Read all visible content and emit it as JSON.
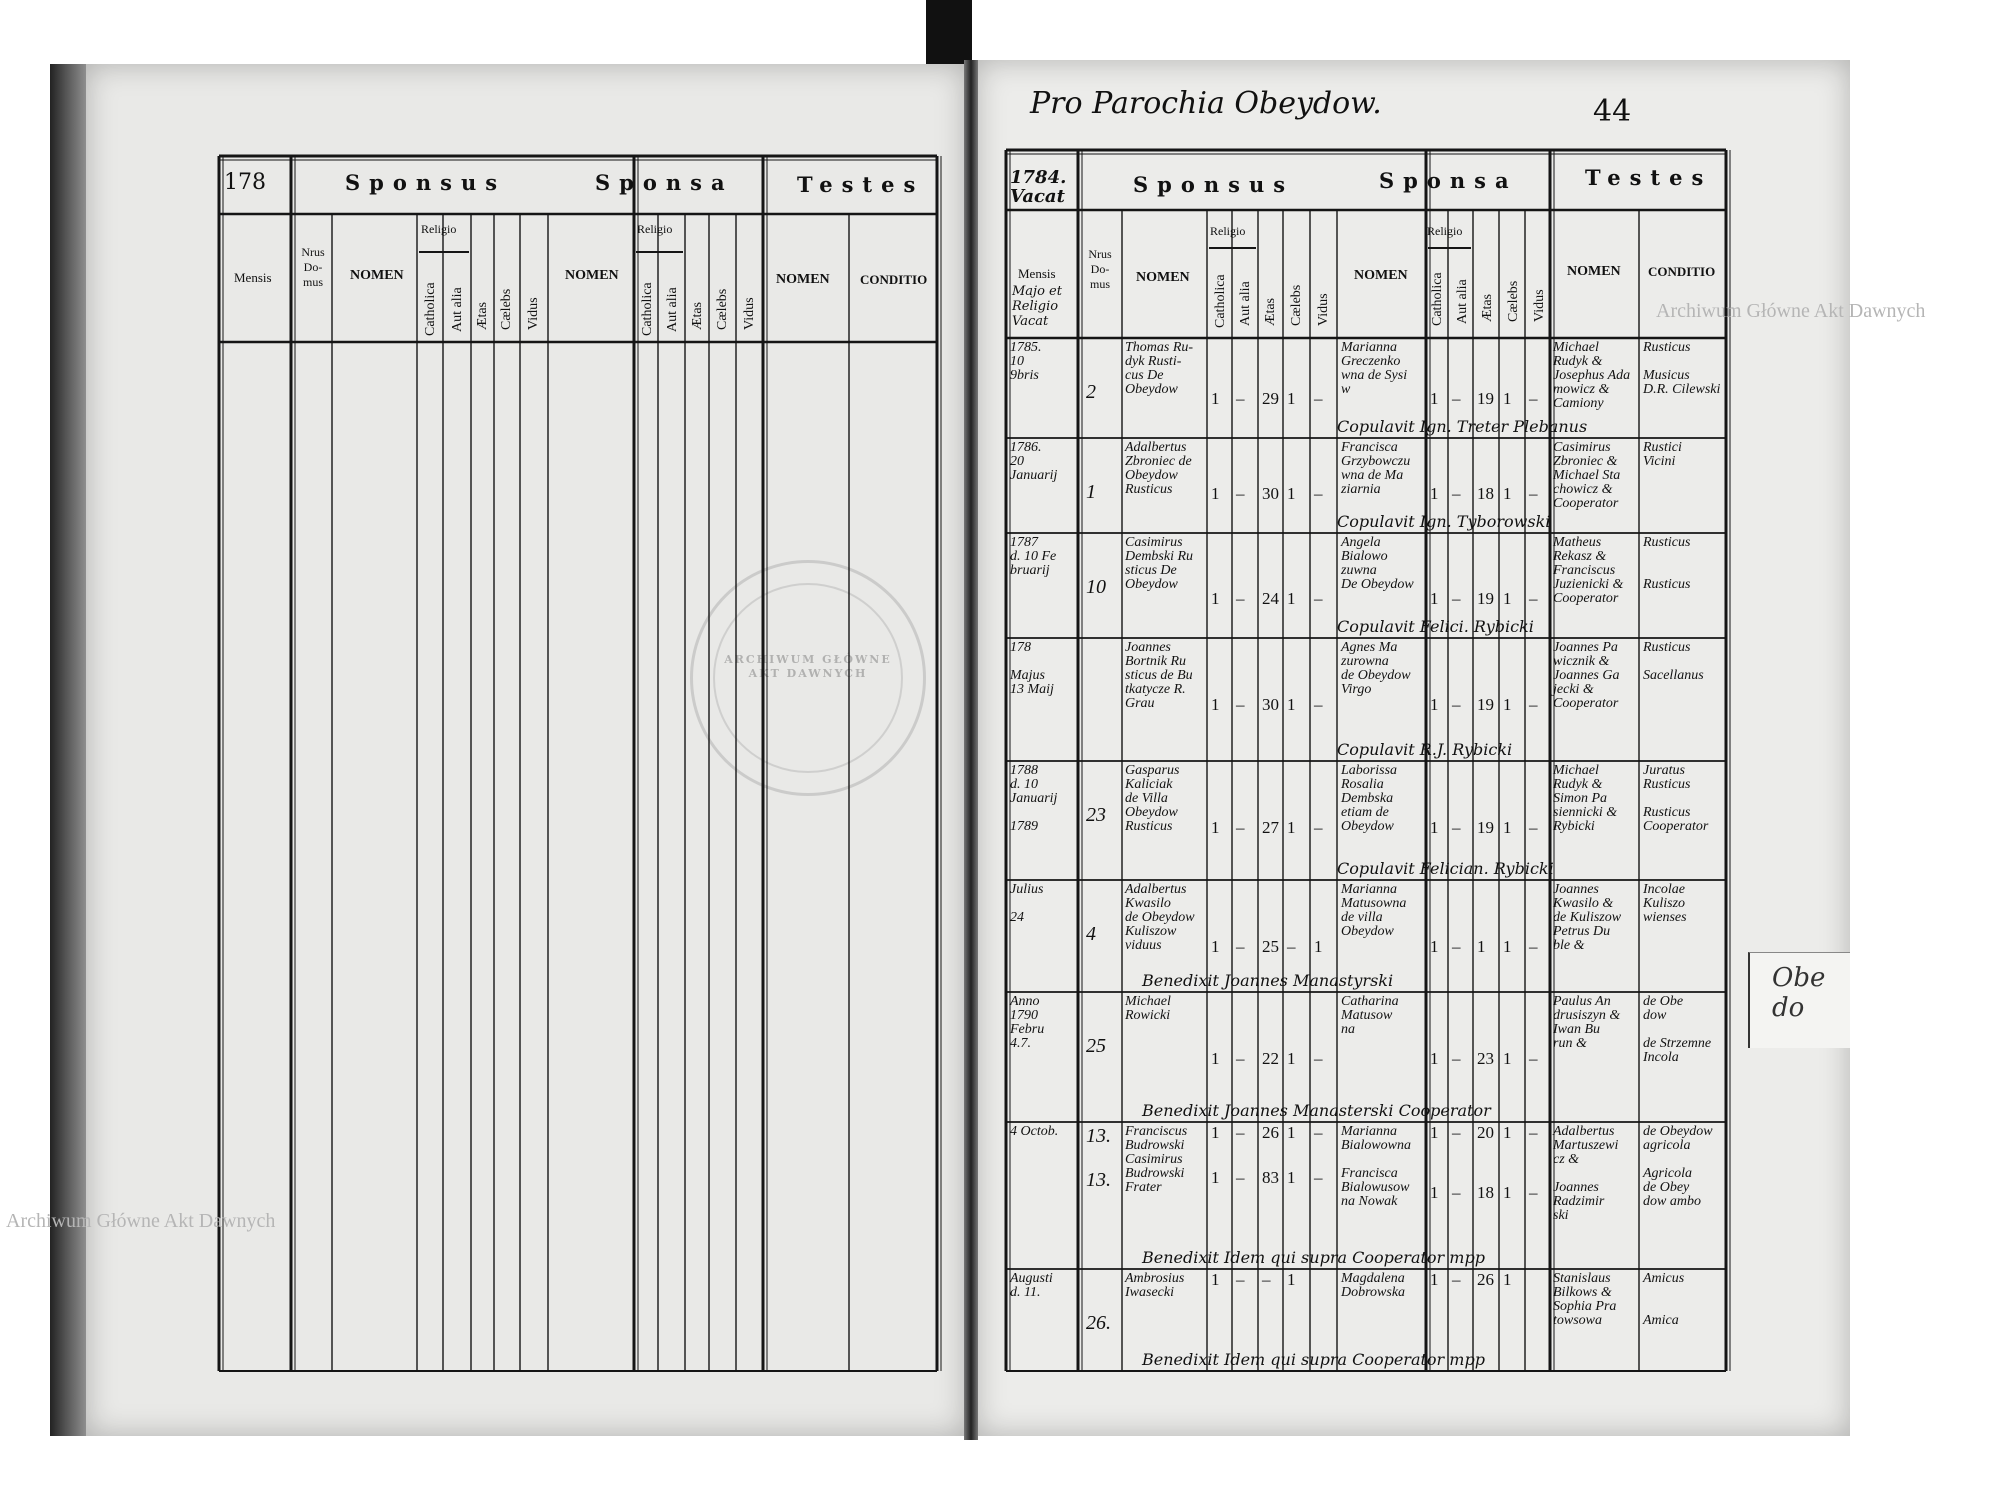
{
  "left_page": {
    "year_prefix": "178",
    "group_headers": {
      "sponsus": "Sponsus",
      "sponsa": "Sponsa",
      "testes": "Testes"
    },
    "columns": {
      "mensis": "Mensis",
      "nrus_domus": "Nrus Do- mus",
      "nomen": "NOMEN",
      "religio": "Religio",
      "catholica": "Catholica",
      "aut_alia": "Aut alia",
      "aetas": "Ætas",
      "caelebs": "Cælebs",
      "viduus": "Vidus",
      "conditio": "CONDITIO"
    }
  },
  "right_page": {
    "heading": "Pro Parochia Obeydow.",
    "folio": "44",
    "year_cell": "1784. Vacat",
    "group_headers": {
      "sponsus": "Sponsus",
      "sponsa": "Sponsa",
      "testes": "Testes"
    },
    "columns": {
      "mensis": "Mensis",
      "mensis_note": "Majo et Religio Vacat",
      "nrus_domus": "Nrus Do- mus",
      "nomen": "NOMEN",
      "religio": "Religio",
      "catholica": "Catholica",
      "aut_alia": "Aut alia",
      "aetas": "Ætas",
      "caelebs": "Cælebs",
      "viduus": "Vidus",
      "conditio": "CONDITIO"
    },
    "entries": [
      {
        "mensis": "1785.\n10\n9bris",
        "nrus": "2",
        "sponsus": "Thomas Ru-\ndyk Rusti-\ncus De Obeydow",
        "sponsus_vals": [
          "1",
          "–",
          "29",
          "1",
          "–"
        ],
        "sponsa": "Marianna\nGreczenko\nwna de Sysi\nw",
        "sponsa_vals": [
          "1",
          "–",
          "19",
          "1",
          "–"
        ],
        "testes": "Michael\nRudyk &\nJosephus Ada\nmowicz &\nCamiony",
        "conditio": "Rusticus\n\nMusicus\nD.R. Cilewski",
        "note": "Copulavit Ign. Treter Plebanus"
      },
      {
        "mensis": "1786.\n20\nJanuarij",
        "nrus": "1",
        "sponsus": "Adalbertus\nZbroniec de\nObeydow\nRusticus",
        "sponsus_vals": [
          "1",
          "–",
          "30",
          "1",
          "–"
        ],
        "sponsa": "Francisca\nGrzybowczu\nwna de Ma\nziarnia",
        "sponsa_vals": [
          "1",
          "–",
          "18",
          "1",
          "–"
        ],
        "testes": "Casimirus\nZbroniec &\nMichael Sta\nchowicz &\nCooperator",
        "conditio": "Rustici\nVicini",
        "note": "Copulavit Ign. Tyborowski"
      },
      {
        "mensis": "1787\nd. 10 Fe\nbruarij",
        "nrus": "10",
        "sponsus": "Casimirus\nDembski Ru\nsticus De\nObeydow",
        "sponsus_vals": [
          "1",
          "–",
          "24",
          "1",
          "–"
        ],
        "sponsa": "Angela\nBialowo\nzuwna\nDe Obeydow",
        "sponsa_vals": [
          "1",
          "–",
          "19",
          "1",
          "–"
        ],
        "testes": "Matheus\nRekasz &\nFranciscus\nJuzienicki &\nCooperator",
        "conditio": "Rusticus\n\n\nRusticus",
        "note": "Copulavit Felici. Rybicki"
      },
      {
        "mensis": "178\n\nMajus\n13 Maij",
        "nrus": "",
        "sponsus": "Joannes\nBortnik Ru\nsticus de Bu\ntkatycze R.\nGrau",
        "sponsus_vals": [
          "1",
          "–",
          "30",
          "1",
          "–"
        ],
        "sponsa": "Agnes Ma\nzurowna\nde Obeydow\nVirgo",
        "sponsa_vals": [
          "1",
          "–",
          "19",
          "1",
          "–"
        ],
        "testes": "Joannes Pa\nwicznik &\nJoannes Ga\njecki &\nCooperator",
        "conditio": "Rusticus\n\nSacellanus",
        "note": "Copulavit R.J. Rybicki"
      },
      {
        "mensis": "1788\nd. 10\nJanuarij\n\n1789",
        "nrus": "23",
        "sponsus": "Gasparus\nKaliciak\nde Villa\nObeydow\nRusticus",
        "sponsus_vals": [
          "1",
          "–",
          "27",
          "1",
          "–"
        ],
        "sponsa": "Laborissa\nRosalia\nDembska\netiam de\nObeydow",
        "sponsa_vals": [
          "1",
          "–",
          "19",
          "1",
          "–"
        ],
        "testes": "Michael\nRudyk &\nSimon Pa\nsiennicki &\nRybicki",
        "conditio": "Juratus\nRusticus\n\nRusticus\nCooperator",
        "note": "Copulavit Felician. Rybicki"
      },
      {
        "mensis": "Julius\n\n24",
        "nrus": "4",
        "sponsus": "Adalbertus\nKwasilo\nde Obeydow\nKuliszow\nviduus",
        "sponsus_vals": [
          "1",
          "–",
          "25",
          "–",
          "1"
        ],
        "sponsa": "Marianna\nMatusowna\nde villa\nObeydow",
        "sponsa_vals": [
          "1",
          "–",
          "1",
          "1",
          "–"
        ],
        "testes": "Joannes\nKwasilo &\nde Kuliszow\nPetrus Du\nble &",
        "conditio": "Incolae\nKuliszo\nwienses",
        "note": "Benedixit Joannes Manastyrski"
      },
      {
        "mensis": "Anno\n1790\nFebru\n4.7.",
        "nrus": "25",
        "sponsus": "Michael\nRowicki",
        "sponsus_vals": [
          "1",
          "–",
          "22",
          "1",
          "–"
        ],
        "sponsa": "Catharina\nMatusow\nna",
        "sponsa_vals": [
          "1",
          "–",
          "23",
          "1",
          "–"
        ],
        "testes": "Paulus An\ndrusiszyn &\nIwan Bu\nrun &",
        "conditio": "de Obe\ndow\n\nde Strzemne\nIncola",
        "note": "Benedixit Joannes Manasterski Cooperator"
      },
      {
        "mensis": "4 Octob.",
        "nrus": "13.\n\n13.",
        "sponsus": "Franciscus\nBudrowski\nCasimirus\nBudrowski\nFrater",
        "sponsus_vals": [
          "1\n\n\n1",
          "–\n\n\n–",
          "26\n\n\n83",
          "1\n\n\n1",
          "–\n\n\n–"
        ],
        "sponsa": "Marianna\nBialowowna\n\nFrancisca\nBialowusow\nna Nowak",
        "sponsa_vals": [
          "1\n\n\n\n1",
          "–\n\n\n\n–",
          "20\n\n\n\n18",
          "1\n\n\n\n1",
          "–\n\n\n\n–"
        ],
        "testes": "Adalbertus\nMartuszewi\ncz &\n\nJoannes\nRadzimir\nski",
        "conditio": "de Obeydow\nagricola\n\nAgricola\nde Obey\ndow ambo",
        "note": "Benedixit Idem qui supra Cooperator mpp"
      },
      {
        "mensis": "Augusti\nd. 11.",
        "nrus": "26.",
        "sponsus": "Ambrosius\nIwasecki",
        "sponsus_vals": [
          "1",
          "–",
          "–",
          "1",
          ""
        ],
        "sponsa": "Magdalena\nDobrowska",
        "sponsa_vals": [
          "1",
          "–",
          "26",
          "1",
          ""
        ],
        "testes": "Stanislaus\nBilkows &\nSophia Pra\ntowsowa",
        "conditio": "Amicus\n\n\nAmica",
        "note": "Benedixit Idem qui supra Cooperator mpp"
      }
    ],
    "margin_note": "Obe\ndo"
  },
  "watermarks": {
    "left": "Archiwum Główne Akt Dawnych",
    "right": "Archiwum Główne Akt Dawnych",
    "stamp": "ARCHIWUM GŁÓWNE AKT DAWNYCH"
  }
}
